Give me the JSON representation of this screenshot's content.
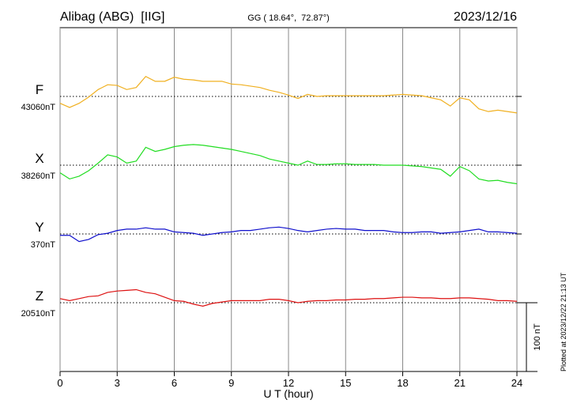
{
  "chart_data": {
    "type": "line",
    "title": "Alibag (ABG)  [IIG]",
    "subtitle": "GG ( 18.64°,  72.87°)",
    "date": "2023/12/16",
    "note": "Plotted at 2023/12/22 21:13 UT",
    "xlabel": "U T (hour)",
    "xlim": [
      0,
      24
    ],
    "xticks": [
      0,
      3,
      6,
      9,
      12,
      15,
      18,
      21,
      24
    ],
    "grid": true,
    "scale": {
      "value": 100,
      "label": "100 nT"
    },
    "x": [
      0,
      0.5,
      1,
      1.5,
      2,
      2.5,
      3,
      3.5,
      4,
      4.5,
      5,
      5.5,
      6,
      6.5,
      7,
      7.5,
      8,
      8.5,
      9,
      9.5,
      10,
      10.5,
      11,
      11.5,
      12,
      12.5,
      13,
      13.5,
      14,
      14.5,
      15,
      15.5,
      16,
      16.5,
      17,
      17.5,
      18,
      18.5,
      19,
      19.5,
      20,
      20.5,
      21,
      21.5,
      22,
      22.5,
      23,
      23.5,
      24
    ],
    "series": [
      {
        "name": "F",
        "color": "#f0b020",
        "baseline": {
          "value": 43060,
          "label": "43060nT"
        },
        "values": [
          43050,
          43044,
          43050,
          43059,
          43070,
          43077,
          43076,
          43070,
          43073,
          43089,
          43082,
          43082,
          43088,
          43085,
          43084,
          43082,
          43082,
          43082,
          43078,
          43077,
          43075,
          43073,
          43069,
          43066,
          43062,
          43057,
          43063,
          43060,
          43061,
          43061,
          43061,
          43061,
          43061,
          43061,
          43061,
          43062,
          43063,
          43062,
          43061,
          43058,
          43055,
          43046,
          43058,
          43055,
          43042,
          43038,
          43040,
          43038,
          43036
        ]
      },
      {
        "name": "X",
        "color": "#22dd22",
        "baseline": {
          "value": 38260,
          "label": "38260nT"
        },
        "values": [
          38249,
          38240,
          38244,
          38252,
          38263,
          38275,
          38272,
          38263,
          38266,
          38286,
          38280,
          38283,
          38287,
          38289,
          38290,
          38289,
          38287,
          38285,
          38283,
          38280,
          38277,
          38274,
          38269,
          38266,
          38263,
          38260,
          38266,
          38261,
          38261,
          38262,
          38262,
          38261,
          38261,
          38261,
          38260,
          38260,
          38260,
          38259,
          38258,
          38256,
          38254,
          38244,
          38258,
          38252,
          38240,
          38237,
          38238,
          38235,
          38233
        ]
      },
      {
        "name": "Y",
        "color": "#1010cc",
        "baseline": {
          "value": 370,
          "label": "370nT"
        },
        "values": [
          368,
          368,
          359,
          362,
          369,
          371,
          375,
          377,
          377,
          379,
          377,
          377,
          373,
          372,
          371,
          368,
          370,
          372,
          373,
          375,
          375,
          377,
          379,
          380,
          378,
          375,
          373,
          375,
          377,
          378,
          377,
          377,
          375,
          375,
          375,
          373,
          372,
          372,
          373,
          373,
          371,
          372,
          373,
          375,
          377,
          373,
          373,
          372,
          371
        ]
      },
      {
        "name": "Z",
        "color": "#dd1111",
        "baseline": {
          "value": 20510,
          "label": "20510nT"
        },
        "values": [
          20516,
          20513,
          20516,
          20519,
          20520,
          20525,
          20527,
          20528,
          20529,
          20525,
          20523,
          20518,
          20513,
          20512,
          20508,
          20505,
          20509,
          20511,
          20513,
          20513,
          20513,
          20513,
          20515,
          20515,
          20513,
          20510,
          20512,
          20513,
          20513,
          20514,
          20514,
          20515,
          20515,
          20516,
          20516,
          20517,
          20518,
          20518,
          20517,
          20517,
          20516,
          20516,
          20517,
          20517,
          20516,
          20515,
          20513,
          20513,
          20512
        ]
      }
    ]
  }
}
